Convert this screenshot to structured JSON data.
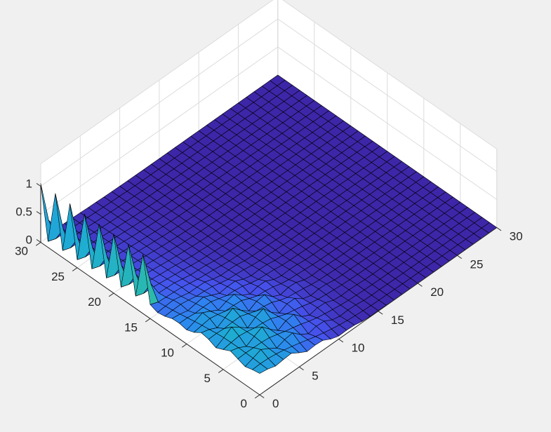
{
  "chart_data": {
    "type": "surface",
    "title": "",
    "xlabel": "",
    "ylabel": "",
    "zlabel": "",
    "xlim": [
      0,
      30
    ],
    "ylim": [
      0,
      30
    ],
    "zlim": [
      0,
      1
    ],
    "x_ticks": [
      "0",
      "5",
      "10",
      "15",
      "20",
      "25",
      "30"
    ],
    "y_ticks": [
      "0",
      "5",
      "10",
      "15",
      "20",
      "25",
      "30"
    ],
    "z_ticks": [
      "0",
      "0.5",
      "1"
    ],
    "grid": true,
    "colormap": "parula",
    "edge_color": "#000000",
    "colors": {
      "low": "#3e26a8",
      "mid": "#26a8d9",
      "high": "#f9fb0e",
      "background": "#f0f0f0",
      "axes_face": "#ffffff"
    },
    "notes_visible": "Spikes along the x=0 edge reach z=1 for y between ~17 and 30; a broad ridge near x≈0–8 decays toward the far corner; an oscillating bump centered near x≈5,y≈5 with amplitude ~0.3."
  }
}
